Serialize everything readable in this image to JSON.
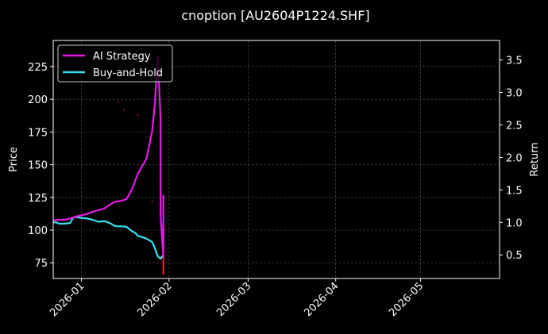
{
  "chart_data": {
    "type": "line",
    "title": "cnoption [AU2604P1224.SHF]",
    "ylabel": "Price",
    "y2label": "Return",
    "xlim": [
      "2025-12-22",
      "2026-05-29"
    ],
    "ylim": [
      63,
      245
    ],
    "y2lim": [
      0.1365,
      3.8
    ],
    "x_ticks": [
      "2026-01",
      "2026-02",
      "2026-03",
      "2026-04",
      "2026-05"
    ],
    "y_ticks": [
      75,
      100,
      125,
      150,
      175,
      200,
      225
    ],
    "y2_ticks": [
      0.5,
      1.0,
      1.5,
      2.0,
      2.5,
      3.0,
      3.5
    ],
    "y2_tick_labels": [
      "0.5",
      "1.0",
      "1.5",
      "2.0",
      "2.5",
      "3.0",
      "3.5"
    ],
    "grid": true,
    "legend_position": "top-left",
    "series": [
      {
        "name": "AI Strategy",
        "axis": "right",
        "color": "#e619e6",
        "x": [
          "2025-12-22",
          "2025-12-24",
          "2025-12-26",
          "2025-12-28",
          "2025-12-30",
          "2026-01-01",
          "2026-01-03",
          "2026-01-05",
          "2026-01-07",
          "2026-01-09",
          "2026-01-11",
          "2026-01-13",
          "2026-01-15",
          "2026-01-17",
          "2026-01-19",
          "2026-01-20",
          "2026-01-21",
          "2026-01-22",
          "2026-01-23",
          "2026-01-24",
          "2026-01-26",
          "2026-01-27",
          "2026-01-28",
          "2026-01-29",
          "2026-01-29",
          "2026-01-30",
          "2026-01-30"
        ],
        "values": [
          1.03,
          1.04,
          1.04,
          1.06,
          1.09,
          1.11,
          1.13,
          1.16,
          1.19,
          1.21,
          1.27,
          1.32,
          1.33,
          1.36,
          1.52,
          1.64,
          1.75,
          1.83,
          1.9,
          1.98,
          2.4,
          2.84,
          3.56,
          2.6,
          1.1,
          0.47,
          1.42
        ]
      },
      {
        "name": "Buy-and-Hold",
        "axis": "right",
        "color": "#33e0f0",
        "x": [
          "2025-12-22",
          "2025-12-23",
          "2025-12-24",
          "2025-12-26",
          "2025-12-28",
          "2025-12-29",
          "2025-12-30",
          "2026-01-01",
          "2026-01-03",
          "2026-01-05",
          "2026-01-07",
          "2026-01-09",
          "2026-01-11",
          "2026-01-13",
          "2026-01-15",
          "2026-01-17",
          "2026-01-19",
          "2026-01-20",
          "2026-01-21",
          "2026-01-22",
          "2026-01-24",
          "2026-01-26",
          "2026-01-27",
          "2026-01-28",
          "2026-01-29",
          "2026-01-30"
        ],
        "values": [
          1.0,
          1.0,
          0.98,
          0.98,
          0.99,
          1.07,
          1.08,
          1.07,
          1.06,
          1.04,
          1.01,
          1.02,
          0.99,
          0.94,
          0.94,
          0.93,
          0.86,
          0.84,
          0.79,
          0.78,
          0.75,
          0.7,
          0.6,
          0.48,
          0.44,
          0.5
        ]
      },
      {
        "name": "",
        "axis": "left",
        "color": "#ff2020",
        "x": [
          "2026-01-14",
          "2026-01-16",
          "2026-01-21",
          "2026-01-26",
          "2026-01-29",
          "2026-01-30",
          "2026-01-30",
          "2026-01-30"
        ],
        "values": [
          198,
          192,
          188,
          122,
          110,
          93,
          85,
          66
        ]
      }
    ]
  }
}
